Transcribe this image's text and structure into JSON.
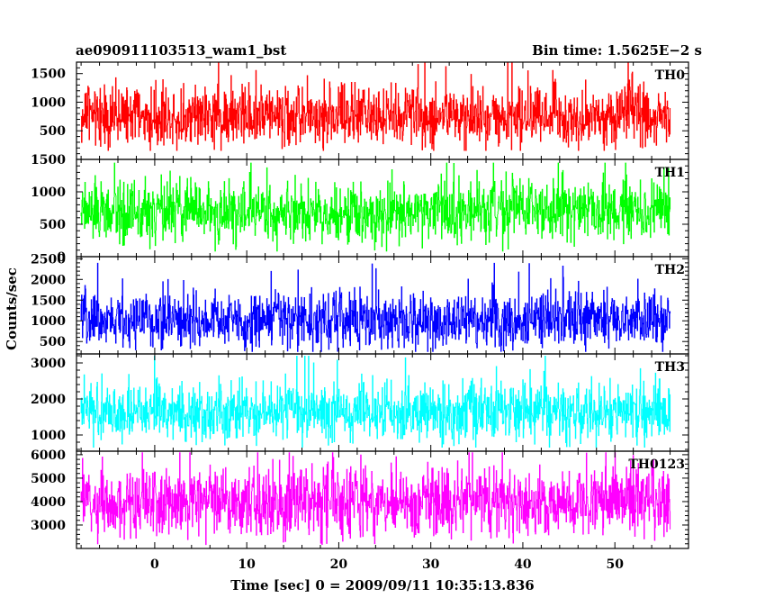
{
  "header": {
    "title": "ae090911103513_wam1_bst",
    "bin_time": "Bin time: 1.5625E−2 s"
  },
  "chart_data": {
    "type": "line",
    "x": {
      "label": "Time [sec] 0 = 2009/09/11 10:35:13.836",
      "range": [
        -8.5,
        58
      ],
      "data_range": [
        -8,
        56
      ],
      "ticks": [
        0,
        10,
        20,
        30,
        40,
        50
      ],
      "minor_step": 2
    },
    "ylabel": "Counts/sec",
    "panels": [
      {
        "name": "TH0",
        "color": "#ff0000",
        "ylim": [
          0,
          1700
        ],
        "ticks": [
          500,
          1000,
          1500
        ],
        "tick_labels": [
          "500",
          "1000",
          "1500"
        ],
        "minor_step": 100,
        "series": {
          "mean": 750,
          "spread": 260,
          "min": 150,
          "max": 1700
        }
      },
      {
        "name": "TH1",
        "color": "#00ff00",
        "ylim": [
          0,
          1500
        ],
        "ticks": [
          0,
          500,
          1000,
          1500
        ],
        "tick_labels": [
          "0",
          "500",
          "1000",
          "1500"
        ],
        "minor_step": 100,
        "series": {
          "mean": 680,
          "spread": 230,
          "min": 80,
          "max": 1450
        }
      },
      {
        "name": "TH2",
        "color": "#0000ff",
        "ylim": [
          200,
          2550
        ],
        "ticks": [
          500,
          1000,
          1500,
          2000,
          2500
        ],
        "tick_labels": [
          "500",
          "1000",
          "1500",
          "2000",
          "2500"
        ],
        "minor_step": 100,
        "series": {
          "mean": 1000,
          "spread": 340,
          "min": 250,
          "max": 2400
        }
      },
      {
        "name": "TH3",
        "color": "#00ffff",
        "ylim": [
          550,
          3250
        ],
        "ticks": [
          1000,
          2000,
          3000
        ],
        "tick_labels": [
          "1000",
          "2000",
          "3000"
        ],
        "minor_step": 200,
        "series": {
          "mean": 1600,
          "spread": 400,
          "min": 650,
          "max": 3200
        }
      },
      {
        "name": "TH0123",
        "color": "#ff00ff",
        "ylim": [
          2000,
          6150
        ],
        "ticks": [
          3000,
          4000,
          5000,
          6000
        ],
        "tick_labels": [
          "3000",
          "4000",
          "5000",
          "6000"
        ],
        "minor_step": 200,
        "series": {
          "mean": 3950,
          "spread": 720,
          "min": 2150,
          "max": 6100
        }
      }
    ]
  }
}
